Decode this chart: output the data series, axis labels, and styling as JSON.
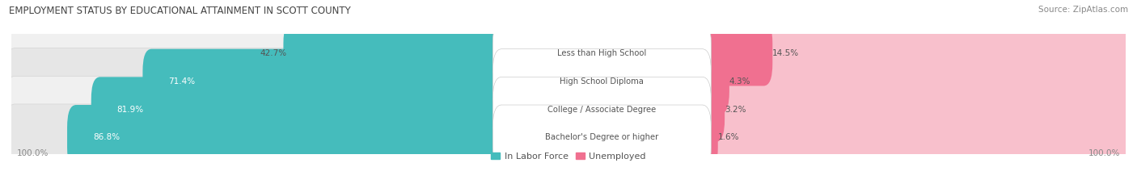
{
  "title": "EMPLOYMENT STATUS BY EDUCATIONAL ATTAINMENT IN SCOTT COUNTY",
  "source": "Source: ZipAtlas.com",
  "categories": [
    "Less than High School",
    "High School Diploma",
    "College / Associate Degree",
    "Bachelor's Degree or higher"
  ],
  "labor_force_pct": [
    42.7,
    71.4,
    81.9,
    86.8
  ],
  "unemployed_pct": [
    14.5,
    4.3,
    3.2,
    1.6
  ],
  "labor_force_color": "#45BCBC",
  "unemployed_color": "#F07090",
  "unemployed_light_color": "#F8C0CC",
  "row_bg_colors": [
    "#F0F0F0",
    "#E6E6E6",
    "#F0F0F0",
    "#E6E6E6"
  ],
  "lf_label_color_white": "#FFFFFF",
  "label_color": "#555555",
  "title_color": "#444444",
  "source_color": "#888888",
  "x_left_label": "100.0%",
  "x_right_label": "100.0%"
}
